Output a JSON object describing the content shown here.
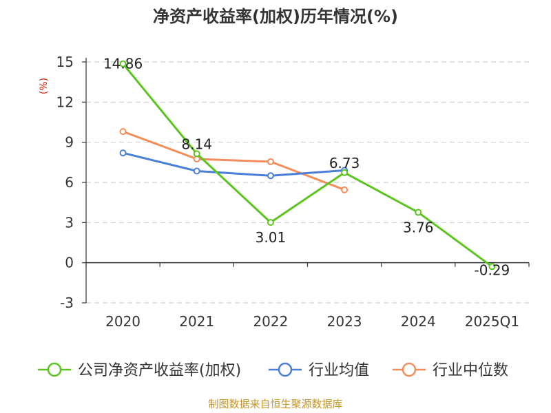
{
  "chart_data": {
    "type": "line",
    "title": "净资产收益率(加权)历年情况(%)",
    "ylabel": "(%)",
    "categories": [
      "2020",
      "2021",
      "2022",
      "2023",
      "2024",
      "2025Q1"
    ],
    "ylim": [
      -3,
      15
    ],
    "yticks": [
      "15",
      "12",
      "9",
      "6",
      "3",
      "0",
      "-3"
    ],
    "grid": true,
    "legend_position": "bottom",
    "series": [
      {
        "name": "公司净资产收益率(加权)",
        "color": "#5cc41e",
        "values": [
          14.86,
          8.14,
          3.01,
          6.73,
          3.76,
          -0.29
        ],
        "labels": [
          "14.86",
          "8.14",
          "3.01",
          "6.73",
          "3.76",
          "-0.29"
        ]
      },
      {
        "name": "行业均值",
        "color": "#4a7fd8",
        "values": [
          8.2,
          6.85,
          6.5,
          6.9,
          null,
          null
        ]
      },
      {
        "name": "行业中位数",
        "color": "#f58d5a",
        "values": [
          9.8,
          7.75,
          7.55,
          5.45,
          null,
          null
        ]
      }
    ]
  },
  "source": "制图数据来自恒生聚源数据库"
}
